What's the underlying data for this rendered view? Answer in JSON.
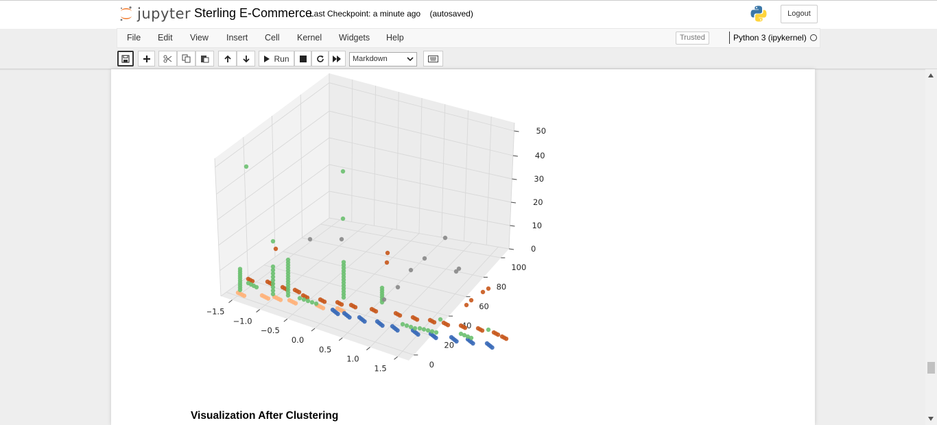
{
  "header": {
    "logo_text": "jupyter",
    "notebook_name": "Sterling E-Commerce",
    "checkpoint": "Last Checkpoint: a minute ago",
    "autosave": "(autosaved)",
    "logout_label": "Logout"
  },
  "menu": {
    "items": [
      "File",
      "Edit",
      "View",
      "Insert",
      "Cell",
      "Kernel",
      "Widgets",
      "Help"
    ],
    "trusted_label": "Trusted",
    "kernel_name": "Python 3 (ipykernel)"
  },
  "toolbar": {
    "run_label": "Run",
    "cell_type": "Markdown"
  },
  "markdown": {
    "heading": "Visualization After Clustering"
  },
  "chart_data": {
    "type": "scatter",
    "projection": "3d",
    "x_ticks": [
      "−1.5",
      "−1.0",
      "−0.5",
      "0.0",
      "0.5",
      "1.0",
      "1.5"
    ],
    "y_ticks": [
      "0",
      "20",
      "40",
      "60",
      "80",
      "100"
    ],
    "z_ticks": [
      "0",
      "10",
      "20",
      "30",
      "40",
      "50"
    ],
    "colors": {
      "cluster_green": "#6cc070",
      "cluster_orange": "#ffb27a",
      "cluster_rust": "#c8581c",
      "cluster_blue": "#3a6ab8",
      "cluster_gray": "#888888"
    }
  }
}
